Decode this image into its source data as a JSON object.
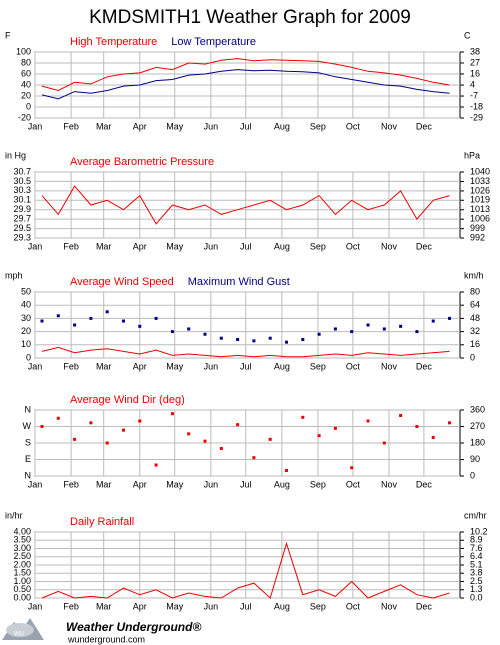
{
  "title": "KMDSMITH1 Weather Graph for 2009",
  "chart_data": [
    {
      "type": "line",
      "ylabel": "F",
      "y2label": "C",
      "x": [
        7,
        21,
        35,
        49,
        63,
        77,
        91,
        105,
        119,
        133,
        147,
        161,
        175,
        189,
        203,
        217,
        231,
        245,
        259,
        273,
        287,
        301,
        315,
        329,
        343,
        357
      ],
      "xlim": [
        1,
        366
      ],
      "xticks": [
        {
          "value": 1,
          "label": "Jan"
        },
        {
          "value": 32,
          "label": "Feb"
        },
        {
          "value": 60,
          "label": "Mar"
        },
        {
          "value": 91,
          "label": "Apr"
        },
        {
          "value": 121,
          "label": "May"
        },
        {
          "value": 152,
          "label": "Jun"
        },
        {
          "value": 182,
          "label": "Jul"
        },
        {
          "value": 213,
          "label": "Aug"
        },
        {
          "value": 244,
          "label": "Sep"
        },
        {
          "value": 274,
          "label": "Oct"
        },
        {
          "value": 305,
          "label": "Nov"
        },
        {
          "value": 335,
          "label": "Dec"
        }
      ],
      "ylim": [
        -20,
        100
      ],
      "yticks": [
        100,
        80,
        60,
        40,
        20,
        0,
        -20
      ],
      "y2lim": [
        -28.9,
        37.8
      ],
      "y2ticks": [
        {
          "value": 37.8,
          "label": "38"
        },
        {
          "value": 26.7,
          "label": "27"
        },
        {
          "value": 15.6,
          "label": "16"
        },
        {
          "value": 4.4,
          "label": "4"
        },
        {
          "value": -6.7,
          "label": "-7"
        },
        {
          "value": -17.8,
          "label": "-18"
        },
        {
          "value": -28.9,
          "label": "-29"
        }
      ],
      "grid": true,
      "series": [
        {
          "name": "High Temperature",
          "color": "#ee0000",
          "mark": "line",
          "values": [
            38,
            30,
            45,
            42,
            55,
            60,
            62,
            72,
            68,
            80,
            78,
            85,
            88,
            84,
            86,
            85,
            84,
            83,
            78,
            72,
            65,
            62,
            58,
            52,
            45,
            40
          ]
        },
        {
          "name": "Low Temperature",
          "color": "#000088",
          "mark": "line",
          "values": [
            22,
            15,
            28,
            25,
            30,
            38,
            40,
            48,
            50,
            58,
            60,
            65,
            68,
            66,
            67,
            65,
            64,
            62,
            55,
            50,
            45,
            40,
            38,
            32,
            28,
            25
          ]
        }
      ]
    },
    {
      "type": "line",
      "ylabel": "in Hg",
      "y2label": "hPa",
      "x": [
        7,
        21,
        35,
        49,
        63,
        77,
        91,
        105,
        119,
        133,
        147,
        161,
        175,
        189,
        203,
        217,
        231,
        245,
        259,
        273,
        287,
        301,
        315,
        329,
        343,
        357
      ],
      "xlim": [
        1,
        366
      ],
      "xticks": [
        {
          "value": 1,
          "label": "Jan"
        },
        {
          "value": 32,
          "label": "Feb"
        },
        {
          "value": 60,
          "label": "Mar"
        },
        {
          "value": 91,
          "label": "Apr"
        },
        {
          "value": 121,
          "label": "May"
        },
        {
          "value": 152,
          "label": "Jun"
        },
        {
          "value": 182,
          "label": "Jul"
        },
        {
          "value": 213,
          "label": "Aug"
        },
        {
          "value": 244,
          "label": "Sep"
        },
        {
          "value": 274,
          "label": "Oct"
        },
        {
          "value": 305,
          "label": "Nov"
        },
        {
          "value": 335,
          "label": "Dec"
        }
      ],
      "ylim": [
        29.3,
        30.7
      ],
      "yticks": [
        30.7,
        30.5,
        30.3,
        30.1,
        29.9,
        29.7,
        29.5,
        29.3
      ],
      "y2lim": [
        992.2,
        1039.6
      ],
      "y2ticks": [
        {
          "value": 1039.6,
          "label": "1040"
        },
        {
          "value": 1032.8,
          "label": "1033"
        },
        {
          "value": 1026.0,
          "label": "1026"
        },
        {
          "value": 1019.3,
          "label": "1019"
        },
        {
          "value": 1012.5,
          "label": "1013"
        },
        {
          "value": 1005.7,
          "label": "1006"
        },
        {
          "value": 998.9,
          "label": "999"
        },
        {
          "value": 992.2,
          "label": "992"
        }
      ],
      "grid": true,
      "series": [
        {
          "name": "Average Barometric Pressure",
          "color": "#ee0000",
          "mark": "line",
          "values": [
            30.2,
            29.8,
            30.4,
            30.0,
            30.1,
            29.9,
            30.2,
            29.6,
            30.0,
            29.9,
            30.0,
            29.8,
            29.9,
            30.0,
            30.1,
            29.9,
            30.0,
            30.2,
            29.8,
            30.1,
            29.9,
            30.0,
            30.3,
            29.7,
            30.1,
            30.2
          ]
        }
      ]
    },
    {
      "type": "line",
      "ylabel": "mph",
      "y2label": "km/h",
      "x": [
        7,
        21,
        35,
        49,
        63,
        77,
        91,
        105,
        119,
        133,
        147,
        161,
        175,
        189,
        203,
        217,
        231,
        245,
        259,
        273,
        287,
        301,
        315,
        329,
        343,
        357
      ],
      "xlim": [
        1,
        366
      ],
      "xticks": [
        {
          "value": 1,
          "label": "Jan"
        },
        {
          "value": 32,
          "label": "Feb"
        },
        {
          "value": 60,
          "label": "Mar"
        },
        {
          "value": 91,
          "label": "Apr"
        },
        {
          "value": 121,
          "label": "May"
        },
        {
          "value": 152,
          "label": "Jun"
        },
        {
          "value": 182,
          "label": "Jul"
        },
        {
          "value": 213,
          "label": "Aug"
        },
        {
          "value": 244,
          "label": "Sep"
        },
        {
          "value": 274,
          "label": "Oct"
        },
        {
          "value": 305,
          "label": "Nov"
        },
        {
          "value": 335,
          "label": "Dec"
        }
      ],
      "ylim": [
        0,
        50
      ],
      "yticks": [
        50,
        40,
        30,
        20,
        10,
        0
      ],
      "y2lim": [
        0,
        80.5
      ],
      "y2ticks": [
        {
          "value": 80.5,
          "label": "80"
        },
        {
          "value": 64.4,
          "label": "64"
        },
        {
          "value": 48.3,
          "label": "48"
        },
        {
          "value": 32.2,
          "label": "32"
        },
        {
          "value": 16.1,
          "label": "16"
        },
        {
          "value": 0,
          "label": "0"
        }
      ],
      "grid": true,
      "series": [
        {
          "name": "Average Wind Speed",
          "color": "#ee0000",
          "mark": "line",
          "values": [
            5,
            8,
            4,
            6,
            7,
            5,
            3,
            6,
            2,
            3,
            2,
            1,
            2,
            1,
            2,
            1,
            1,
            2,
            3,
            2,
            4,
            3,
            2,
            3,
            4,
            5
          ]
        },
        {
          "name": "Maximum Wind Gust",
          "color": "#000088",
          "mark": "dot",
          "values": [
            28,
            32,
            25,
            30,
            35,
            28,
            24,
            30,
            20,
            22,
            18,
            15,
            14,
            13,
            15,
            12,
            14,
            18,
            22,
            20,
            25,
            22,
            24,
            20,
            28,
            30
          ]
        }
      ]
    },
    {
      "type": "scatter",
      "ylabel": null,
      "y2label": null,
      "x": [
        7,
        21,
        35,
        49,
        63,
        77,
        91,
        105,
        119,
        133,
        147,
        161,
        175,
        189,
        203,
        217,
        231,
        245,
        259,
        273,
        287,
        301,
        315,
        329,
        343,
        357
      ],
      "xlim": [
        1,
        366
      ],
      "xticks": [
        {
          "value": 1,
          "label": "Jan"
        },
        {
          "value": 32,
          "label": "Feb"
        },
        {
          "value": 60,
          "label": "Mar"
        },
        {
          "value": 91,
          "label": "Apr"
        },
        {
          "value": 121,
          "label": "May"
        },
        {
          "value": 152,
          "label": "Jun"
        },
        {
          "value": 182,
          "label": "Jul"
        },
        {
          "value": 213,
          "label": "Aug"
        },
        {
          "value": 244,
          "label": "Sep"
        },
        {
          "value": 274,
          "label": "Oct"
        },
        {
          "value": 305,
          "label": "Nov"
        },
        {
          "value": 335,
          "label": "Dec"
        }
      ],
      "ylim": [
        0,
        360
      ],
      "yticks": [
        {
          "value": 360,
          "label": "N"
        },
        {
          "value": 270,
          "label": "W"
        },
        {
          "value": 180,
          "label": "S"
        },
        {
          "value": 90,
          "label": "E"
        },
        {
          "value": 0,
          "label": "N"
        }
      ],
      "y2lim": [
        0,
        360
      ],
      "y2ticks": [
        360,
        270,
        180,
        90,
        0
      ],
      "grid": true,
      "series": [
        {
          "name": "Average Wind Dir (deg)",
          "color": "#ee0000",
          "mark": "dot",
          "values": [
            270,
            315,
            200,
            290,
            180,
            250,
            300,
            60,
            340,
            230,
            190,
            150,
            280,
            100,
            200,
            30,
            320,
            220,
            260,
            45,
            300,
            180,
            330,
            270,
            210,
            290
          ]
        }
      ]
    },
    {
      "type": "line",
      "ylabel": "in/hr",
      "y2label": "cm/hr",
      "x": [
        7,
        21,
        35,
        49,
        63,
        77,
        91,
        105,
        119,
        133,
        147,
        161,
        175,
        189,
        203,
        217,
        231,
        245,
        259,
        273,
        287,
        301,
        315,
        329,
        343,
        357
      ],
      "xlim": [
        1,
        366
      ],
      "xticks": [
        {
          "value": 1,
          "label": "Jan"
        },
        {
          "value": 32,
          "label": "Feb"
        },
        {
          "value": 60,
          "label": "Mar"
        },
        {
          "value": 91,
          "label": "Apr"
        },
        {
          "value": 121,
          "label": "May"
        },
        {
          "value": 152,
          "label": "Jun"
        },
        {
          "value": 182,
          "label": "Jul"
        },
        {
          "value": 213,
          "label": "Aug"
        },
        {
          "value": 244,
          "label": "Sep"
        },
        {
          "value": 274,
          "label": "Oct"
        },
        {
          "value": 305,
          "label": "Nov"
        },
        {
          "value": 335,
          "label": "Dec"
        }
      ],
      "ylim": [
        0,
        4
      ],
      "yticks": [
        {
          "value": 4,
          "label": "4.00"
        },
        {
          "value": 3.5,
          "label": "3.50"
        },
        {
          "value": 3,
          "label": "3.00"
        },
        {
          "value": 2.5,
          "label": "2.50"
        },
        {
          "value": 2,
          "label": "2.00"
        },
        {
          "value": 1.5,
          "label": "1.50"
        },
        {
          "value": 1,
          "label": "1.00"
        },
        {
          "value": 0.5,
          "label": "0.50"
        },
        {
          "value": 0,
          "label": "0.00"
        }
      ],
      "y2lim": [
        0,
        10.16
      ],
      "y2ticks": [
        {
          "value": 10.16,
          "label": "10.2"
        },
        {
          "value": 8.89,
          "label": "8.9"
        },
        {
          "value": 7.62,
          "label": "7.6"
        },
        {
          "value": 6.35,
          "label": "6.4"
        },
        {
          "value": 5.08,
          "label": "5.1"
        },
        {
          "value": 3.81,
          "label": "3.8"
        },
        {
          "value": 2.54,
          "label": "2.5"
        },
        {
          "value": 1.27,
          "label": "1.3"
        },
        {
          "value": 0,
          "label": "0.0"
        }
      ],
      "grid": true,
      "series": [
        {
          "name": "Daily Rainfall",
          "color": "#ee0000",
          "mark": "line",
          "values": [
            0,
            0.4,
            0,
            0.1,
            0,
            0.6,
            0.2,
            0.5,
            0,
            0.3,
            0.1,
            0,
            0.6,
            0.9,
            0,
            3.3,
            0.2,
            0.5,
            0.1,
            1.0,
            0,
            0.4,
            0.8,
            0.2,
            0,
            0.3
          ]
        }
      ]
    }
  ],
  "footer": {
    "brand": "Weather Underground®",
    "site": "wunderground.com"
  }
}
